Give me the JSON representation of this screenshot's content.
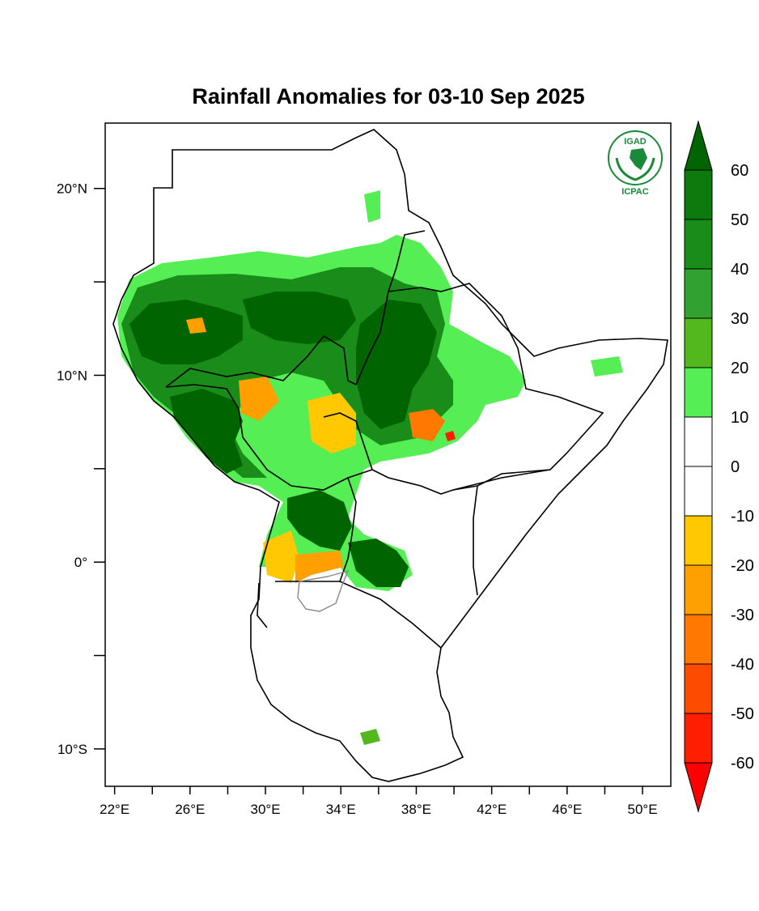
{
  "title": "Rainfall Anomalies for 03-10 Sep 2025",
  "logo": {
    "top_text": "IGAD",
    "bottom_text": "ICPAC"
  },
  "axes": {
    "lon_ticks": [
      {
        "value": 22,
        "label": "22°E"
      },
      {
        "value": 26,
        "label": "26°E"
      },
      {
        "value": 30,
        "label": "30°E"
      },
      {
        "value": 34,
        "label": "34°E"
      },
      {
        "value": 38,
        "label": "38°E"
      },
      {
        "value": 42,
        "label": "42°E"
      },
      {
        "value": 46,
        "label": "46°E"
      },
      {
        "value": 50,
        "label": "50°E"
      }
    ],
    "lon_minor": [
      24,
      28,
      32,
      36,
      40,
      44,
      48
    ],
    "lat_ticks": [
      {
        "value": 20,
        "label": "20°N"
      },
      {
        "value": 10,
        "label": "10°N"
      },
      {
        "value": 0,
        "label": "0°"
      },
      {
        "value": -10,
        "label": "10°S"
      }
    ],
    "lat_minor": [
      15,
      5,
      -5
    ],
    "lon_range": [
      21.5,
      51.5
    ],
    "lat_range": [
      -12,
      23.5
    ]
  },
  "colorbar": {
    "levels": [
      "60",
      "50",
      "40",
      "30",
      "20",
      "10",
      "0",
      "-10",
      "-20",
      "-30",
      "-40",
      "-50",
      "-60"
    ],
    "colors": [
      "#006400",
      "#0d7a0d",
      "#1a8c1a",
      "#31a231",
      "#52b81e",
      "#55ee55",
      "#ffffff",
      "#ffffff",
      "#ffc800",
      "#ffa000",
      "#ff7800",
      "#ff4b00",
      "#ff1e00",
      "#ff0000"
    ]
  },
  "colors": {
    "wet_strong": "#006400",
    "wet_mid": "#31a231",
    "wet_light": "#55ee55",
    "dry_light": "#ffc800",
    "dry_mid": "#ffa000",
    "dry_strong": "#ff4b00"
  }
}
